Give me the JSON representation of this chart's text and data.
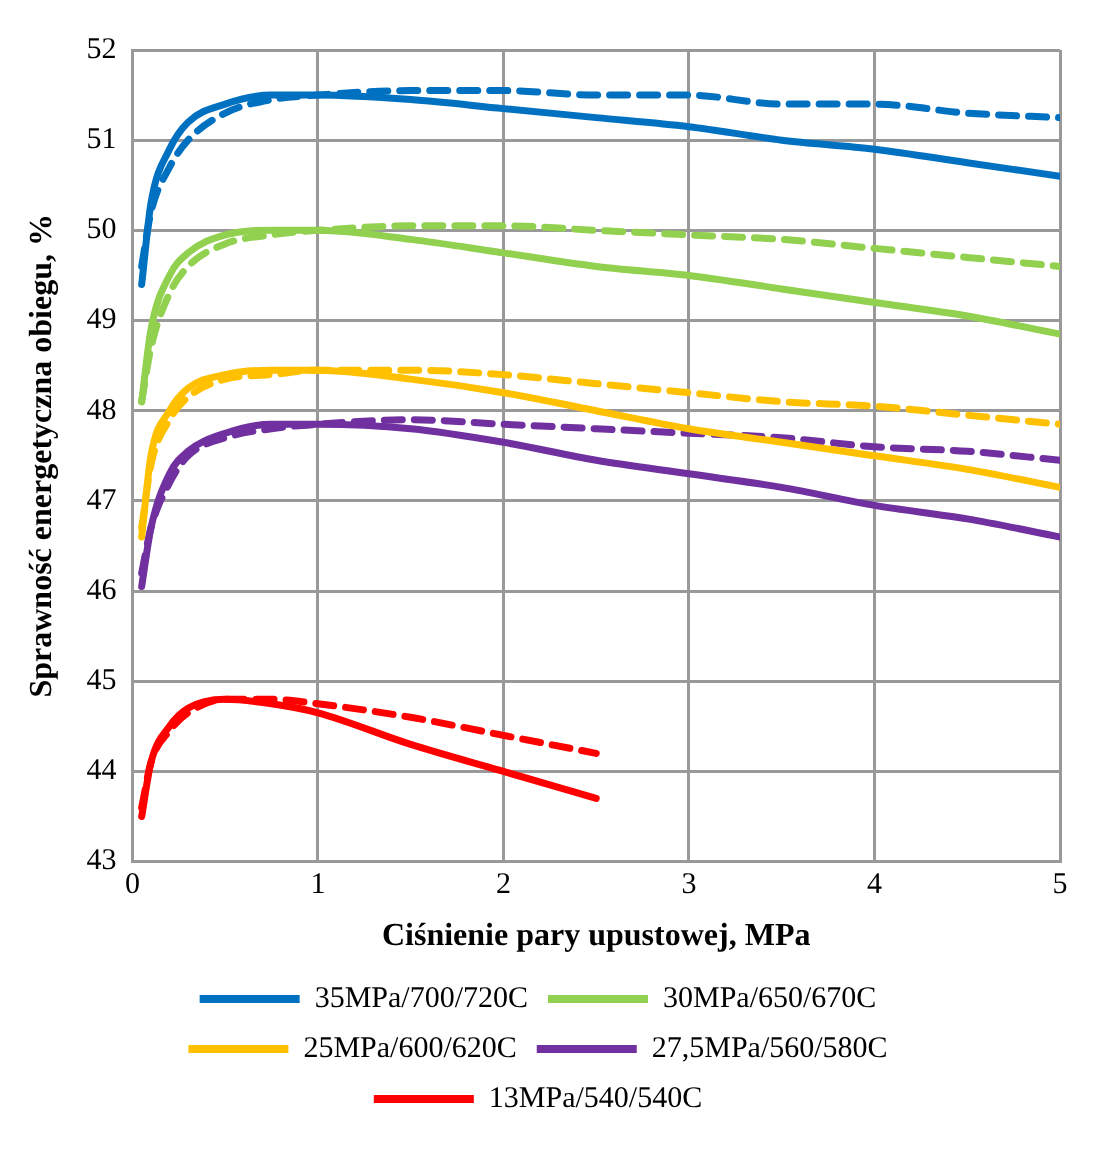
{
  "chart_data": {
    "type": "line",
    "xlabel": "Ciśnienie pary upustowej, MPa",
    "ylabel": "Sprawność energetyczna obiegu, %",
    "x": [
      0.05,
      0.1,
      0.2,
      0.3,
      0.5,
      0.75,
      1,
      1.5,
      2,
      2.5,
      3,
      3.5,
      4,
      4.5,
      5
    ],
    "xlim": [
      0,
      5
    ],
    "xticks": [
      0,
      1,
      2,
      3,
      4,
      5
    ],
    "ylim": [
      43,
      52
    ],
    "yticks": [
      43,
      44,
      45,
      46,
      47,
      48,
      49,
      50,
      51,
      52
    ],
    "grid": true,
    "legend": "bottom",
    "marker": "none",
    "series": [
      {
        "name": "35MPa/700/720C",
        "color": "#0070c0",
        "line_style": "solid",
        "values": [
          49.4,
          50.3,
          50.9,
          51.2,
          51.4,
          51.5,
          51.5,
          51.45,
          51.35,
          51.25,
          51.15,
          51.0,
          50.9,
          50.75,
          50.6
        ]
      },
      {
        "name": "30MPa/650/670C",
        "color": "#92d050",
        "line_style": "solid",
        "values": [
          48.1,
          48.9,
          49.5,
          49.75,
          49.95,
          50.0,
          50.0,
          49.9,
          49.75,
          49.6,
          49.5,
          49.35,
          49.2,
          49.05,
          48.85
        ]
      },
      {
        "name": "25MPa/600/620C",
        "color": "#ffc000",
        "line_style": "solid",
        "values": [
          46.6,
          47.5,
          48.0,
          48.25,
          48.4,
          48.45,
          48.45,
          48.35,
          48.2,
          48.0,
          47.8,
          47.65,
          47.5,
          47.35,
          47.15
        ]
      },
      {
        "name": "27,5MPa/560/580C",
        "color": "#7030a0",
        "line_style": "solid",
        "values": [
          46.05,
          46.7,
          47.3,
          47.55,
          47.75,
          47.85,
          47.85,
          47.8,
          47.65,
          47.45,
          47.3,
          47.15,
          46.95,
          46.8,
          46.6
        ]
      },
      {
        "name": "13MPa/540/540C",
        "color": "#ff0000",
        "line_style": "solid",
        "x": [
          0.05,
          0.1,
          0.2,
          0.3,
          0.5,
          0.75,
          1,
          1.5,
          2,
          2.5
        ],
        "values": [
          43.5,
          44.1,
          44.5,
          44.7,
          44.8,
          44.75,
          44.65,
          44.3,
          44.0,
          43.7
        ]
      },
      {
        "color": "#0070c0",
        "line_style": "dashed",
        "values": [
          49.6,
          50.2,
          50.7,
          51.0,
          51.3,
          51.45,
          51.5,
          51.55,
          51.55,
          51.5,
          51.5,
          51.4,
          51.4,
          51.3,
          51.25
        ]
      },
      {
        "color": "#92d050",
        "line_style": "dashed",
        "values": [
          48.1,
          48.7,
          49.3,
          49.6,
          49.85,
          49.95,
          50.0,
          50.05,
          50.05,
          50.0,
          49.95,
          49.9,
          49.8,
          49.7,
          49.6
        ]
      },
      {
        "color": "#ffc000",
        "line_style": "dashed",
        "values": [
          46.7,
          47.4,
          47.9,
          48.15,
          48.35,
          48.4,
          48.45,
          48.45,
          48.4,
          48.3,
          48.2,
          48.1,
          48.05,
          47.95,
          47.85
        ]
      },
      {
        "color": "#7030a0",
        "line_style": "dashed",
        "values": [
          46.2,
          46.7,
          47.2,
          47.5,
          47.7,
          47.8,
          47.85,
          47.9,
          47.85,
          47.8,
          47.75,
          47.7,
          47.6,
          47.55,
          47.45
        ]
      },
      {
        "color": "#ff0000",
        "line_style": "dashed",
        "x": [
          0.05,
          0.1,
          0.2,
          0.3,
          0.5,
          0.75,
          1,
          1.5,
          2,
          2.5
        ],
        "values": [
          43.6,
          44.1,
          44.45,
          44.65,
          44.8,
          44.8,
          44.75,
          44.6,
          44.4,
          44.2
        ]
      }
    ]
  }
}
